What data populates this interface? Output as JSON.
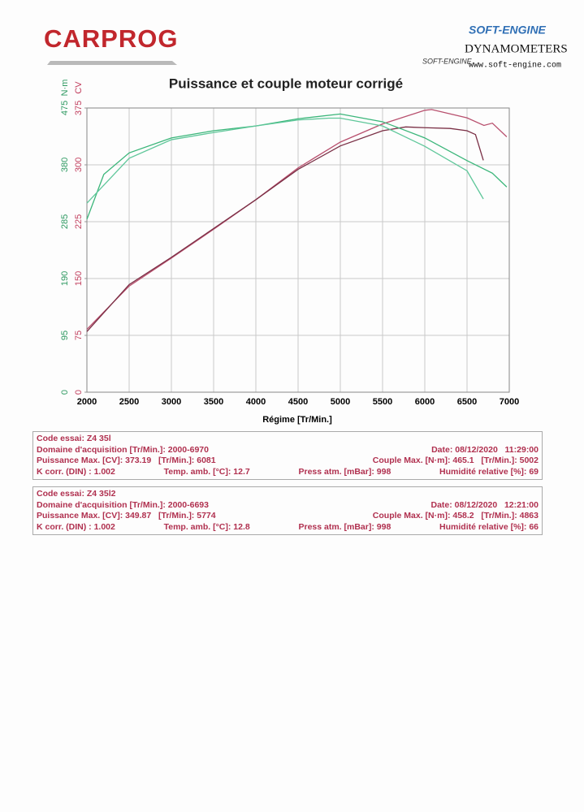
{
  "header": {
    "brand": "CARPROG",
    "vendor": "SOFT-ENGINE",
    "emblem_text": "SOFT-ENGINE",
    "product": "DYNAMOMETERS",
    "website": "www.soft-engine.com"
  },
  "chart_data": {
    "type": "line",
    "title": "Puissance et couple moteur corrigé",
    "xlabel": "Régime [Tr/Min.]",
    "ylabel": "CV",
    "y2label": "N·m",
    "xlim": [
      2000,
      7000
    ],
    "xticks": [
      2000,
      2500,
      3000,
      3500,
      4000,
      4500,
      5000,
      5500,
      6000,
      6500,
      7000
    ],
    "ylim": [
      0,
      375
    ],
    "yticks": [
      0,
      75,
      150,
      225,
      300,
      375
    ],
    "y2lim": [
      0,
      475
    ],
    "y2ticks": [
      0,
      95,
      190,
      285,
      380,
      475
    ],
    "grid": true,
    "series": [
      {
        "color": "#b8506e",
        "x": [
          2000,
          2500,
          3000,
          3500,
          4000,
          4500,
          5000,
          5500,
          6000,
          6081,
          6500,
          6700,
          6800,
          6970
        ],
        "values": [
          83,
          140,
          177,
          215,
          254,
          296,
          330,
          354,
          372,
          373,
          362,
          352,
          355,
          337
        ]
      },
      {
        "color": "#7a2f45",
        "x": [
          2000,
          2500,
          3000,
          3500,
          4000,
          4500,
          5000,
          5500,
          5774,
          6000,
          6300,
          6500,
          6600,
          6693
        ],
        "values": [
          80,
          142,
          178,
          216,
          254,
          294,
          325,
          345,
          350,
          349,
          348,
          345,
          340,
          306
        ]
      },
      {
        "color": "#3bb67a",
        "axis": "y2",
        "x": [
          2000,
          2200,
          2500,
          3000,
          3500,
          4000,
          4500,
          5000,
          5500,
          6000,
          6500,
          6800,
          6970
        ],
        "values": [
          289,
          364,
          400,
          425,
          437,
          445,
          457,
          465,
          452,
          425,
          387,
          366,
          343
        ]
      },
      {
        "color": "#5fc79a",
        "axis": "y2",
        "x": [
          2000,
          2500,
          3000,
          3500,
          4000,
          4500,
          4863,
          5000,
          5500,
          6000,
          6500,
          6693
        ],
        "values": [
          316,
          391,
          422,
          434,
          445,
          455,
          458,
          458,
          445,
          411,
          370,
          323
        ]
      }
    ]
  },
  "tests": [
    {
      "rows": [
        [
          "Code essai: Z4 35l"
        ],
        [
          "Domaine d'acquisition [Tr/Min.]: 2000-6970",
          "Date: 08/12/2020   11:29:00"
        ],
        [
          "Puissance Max. [CV]: 373.19   [Tr/Min.]: 6081",
          "Couple Max. [N·m]: 465.1   [Tr/Min.]: 5002"
        ],
        [
          "K corr. (DIN) : 1.002",
          "Temp. amb. [°C]: 12.7",
          "Press atm. [mBar]: 998",
          "Humidité relative [%]: 69"
        ]
      ]
    },
    {
      "rows": [
        [
          "Code essai: Z4 35l2"
        ],
        [
          "Domaine d'acquisition [Tr/Min.]: 2000-6693",
          "Date: 08/12/2020   12:21:00"
        ],
        [
          "Puissance Max. [CV]: 349.87   [Tr/Min.]: 5774",
          "Couple Max. [N·m]: 458.2   [Tr/Min.]: 4863"
        ],
        [
          "K corr. (DIN) : 1.002",
          "Temp. amb. [°C]: 12.8",
          "Press atm. [mBar]: 998",
          "Humidité relative [%]: 66"
        ]
      ]
    }
  ]
}
